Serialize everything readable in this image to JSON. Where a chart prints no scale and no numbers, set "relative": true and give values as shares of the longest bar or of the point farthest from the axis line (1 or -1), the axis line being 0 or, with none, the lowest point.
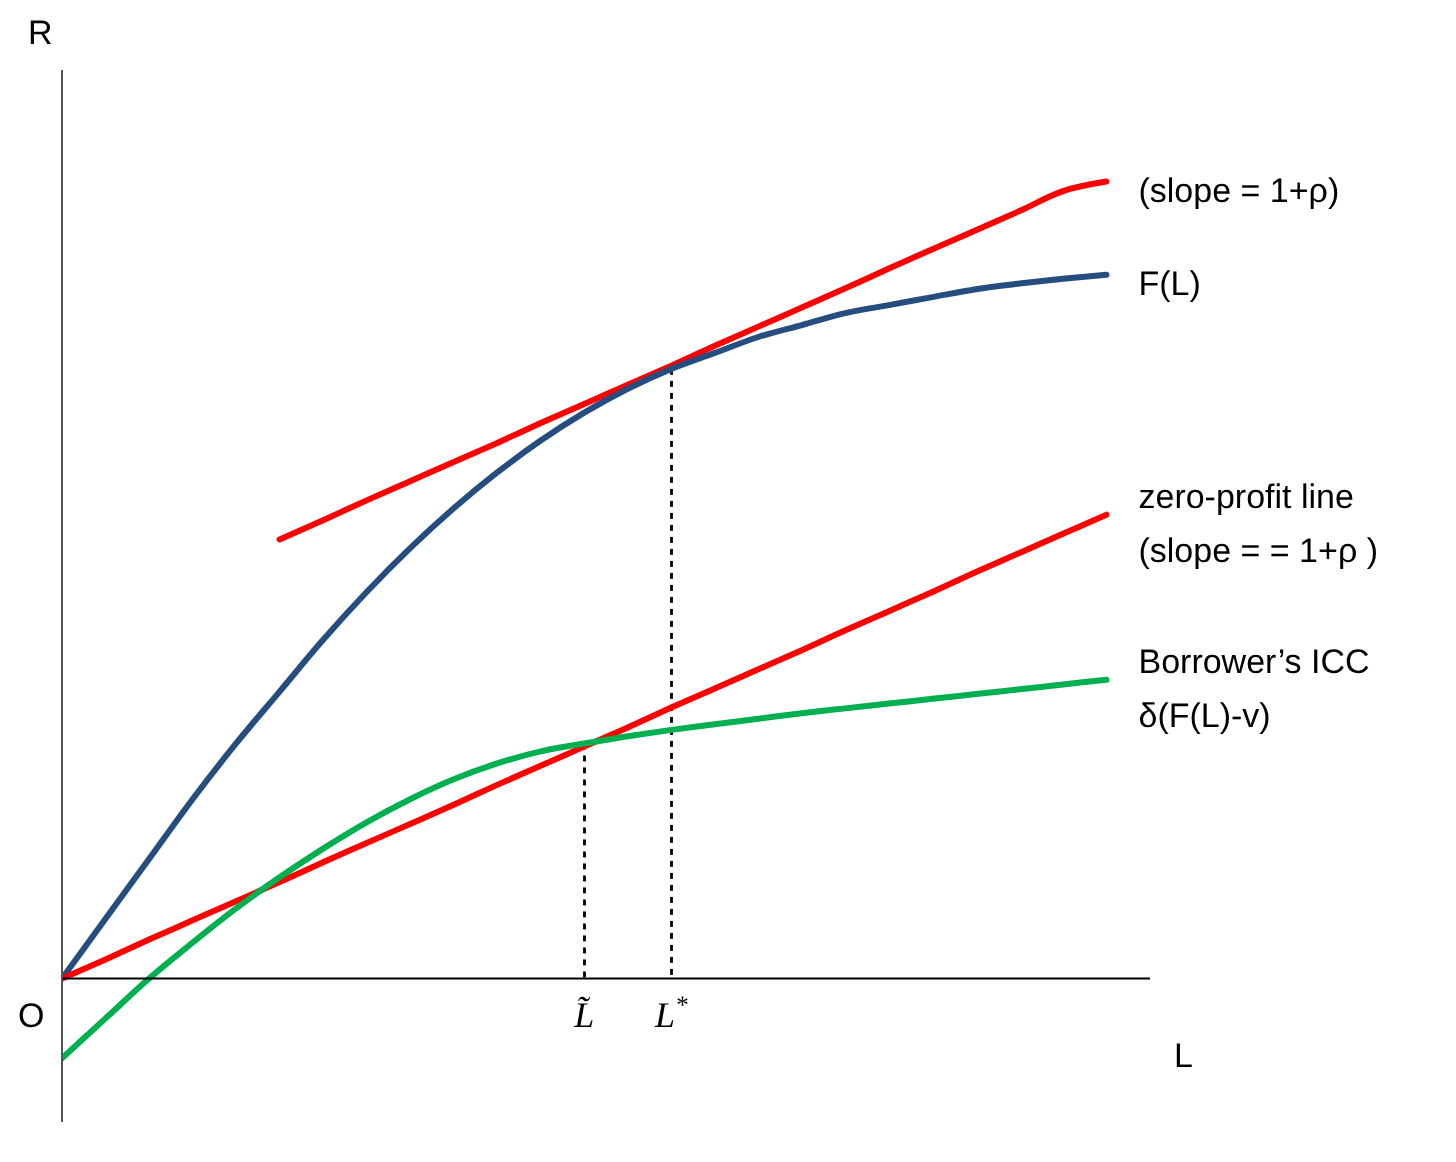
{
  "chart_data": {
    "type": "line",
    "relative": true,
    "xlabel": "L",
    "ylabel": "R",
    "annotations": [
      "O"
    ],
    "legend": false,
    "grid": false,
    "marker": "none",
    "tick_labels": "x",
    "categories": [
      null,
      null,
      null,
      null,
      null,
      null,
      null,
      null,
      null,
      null,
      null,
      null,
      "L̃",
      null,
      "L$^{*}$",
      null,
      null,
      null,
      null,
      null,
      null,
      null,
      null,
      null,
      null,
      null
    ],
    "series": [
      {
        "name": "(slope = 1+ρ)",
        "color": "#ff0000",
        "values": [
          null,
          null,
          null,
          null,
          null,
          0.551,
          0.575,
          0.6,
          0.624,
          0.648,
          0.672,
          0.697,
          0.721,
          0.745,
          0.769,
          0.794,
          0.818,
          0.842,
          0.866,
          0.891,
          0.915,
          0.939,
          0.963,
          0.988,
          1.0,
          null
        ]
      },
      {
        "name": "F(L)",
        "color": "#254d80",
        "values": [
          0,
          0.075,
          0.15,
          0.225,
          0.295,
          0.36,
          0.425,
          0.485,
          0.54,
          0.59,
          0.635,
          0.675,
          0.71,
          0.74,
          0.765,
          0.785,
          0.805,
          0.82,
          0.835,
          0.845,
          0.855,
          0.865,
          0.872,
          0.878,
          0.883,
          null
        ]
      },
      {
        "name": "zero-profit line\n(slope = = 1+ρ )",
        "color": "#ff0000",
        "values": [
          0,
          0.024,
          0.049,
          0.073,
          0.097,
          0.121,
          0.146,
          0.17,
          0.194,
          0.218,
          0.243,
          0.267,
          0.291,
          0.315,
          0.34,
          0.364,
          0.388,
          0.412,
          0.437,
          0.461,
          0.485,
          0.51,
          0.534,
          0.558,
          0.582,
          null
        ]
      },
      {
        "name": "Borrower’s ICC\nδ(F(L)-v)",
        "color": "#00b050",
        "values": [
          -0.1,
          -0.05,
          0,
          0.045,
          0.088,
          0.127,
          0.163,
          0.196,
          0.225,
          0.25,
          0.27,
          0.285,
          0.295,
          0.304,
          0.312,
          0.319,
          0.326,
          0.333,
          0.339,
          0.345,
          0.351,
          0.357,
          0.363,
          0.369,
          0.375,
          null
        ]
      },
      {
        "type": "bar",
        "color": "#000000",
        "line_style": "dotted",
        "values": [
          null,
          null,
          null,
          null,
          null,
          null,
          null,
          null,
          null,
          null,
          null,
          null,
          0.295,
          null,
          0.765,
          null,
          null,
          null,
          null,
          null,
          null,
          null,
          null,
          null,
          null,
          null
        ]
      }
    ]
  }
}
